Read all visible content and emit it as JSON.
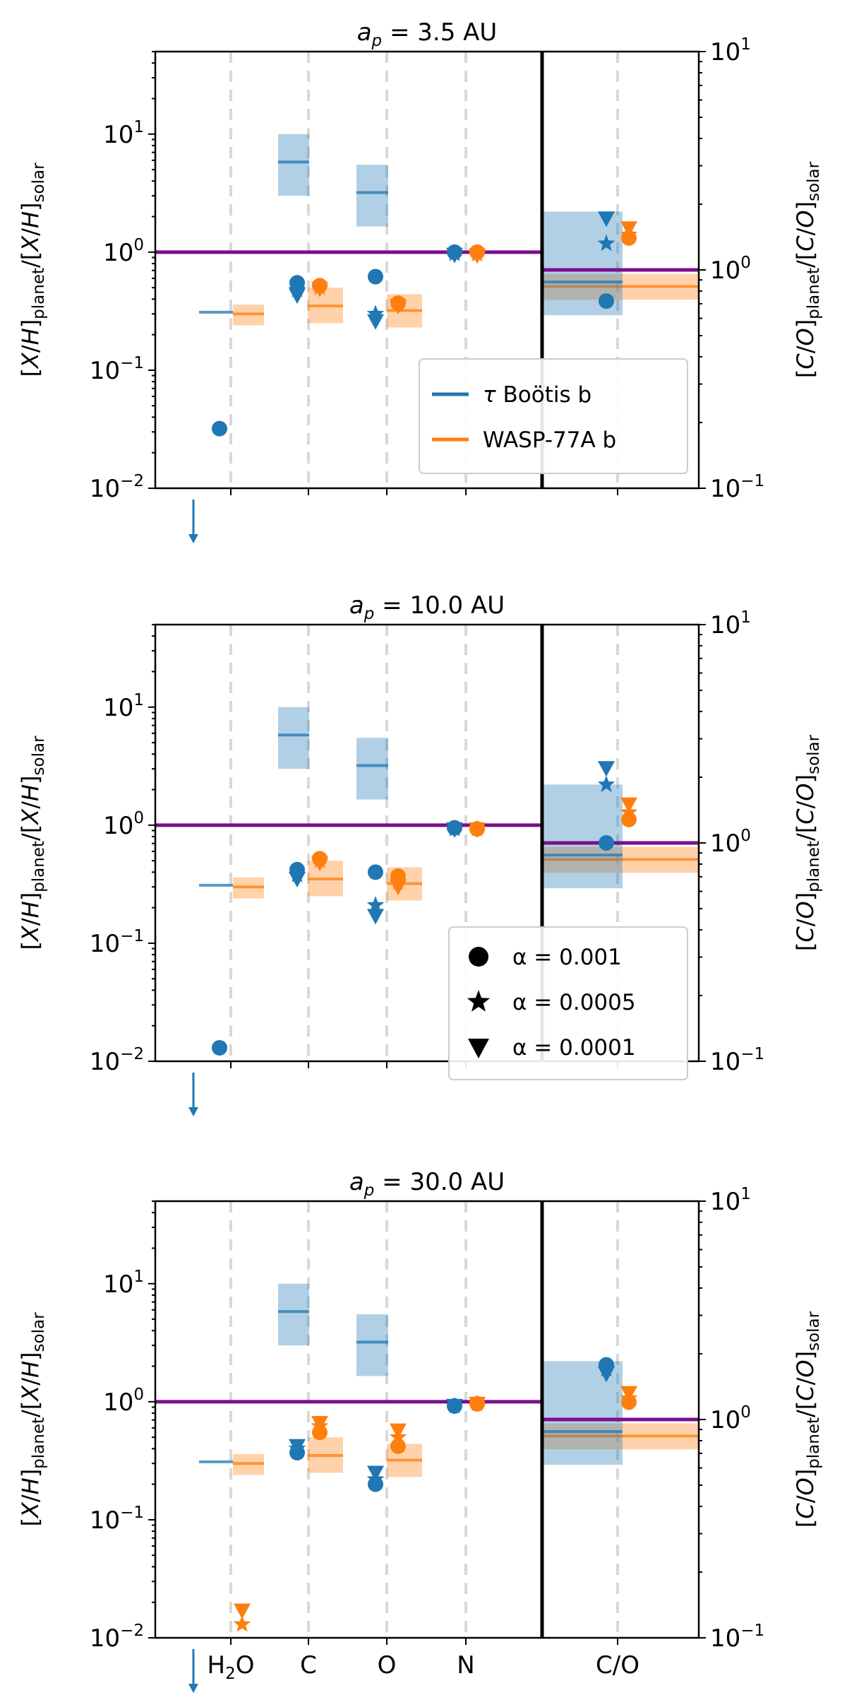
{
  "chart_data": {
    "type": "scatter",
    "y_scale": "log",
    "left_ylim": [
      0.01,
      50
    ],
    "right_ylim": [
      0.1,
      10
    ],
    "left_yticks": [
      0.01,
      0.1,
      1,
      10
    ],
    "right_yticks": [
      0.1,
      1,
      10
    ],
    "left_ytick_labels": [
      {
        "base": "10",
        "exp": "−2"
      },
      {
        "base": "10",
        "exp": "−1"
      },
      {
        "base": "10",
        "exp": "0"
      },
      {
        "base": "10",
        "exp": "1"
      }
    ],
    "right_ytick_labels": [
      {
        "base": "10",
        "exp": "−1"
      },
      {
        "base": "10",
        "exp": "0"
      },
      {
        "base": "10",
        "exp": "1"
      }
    ],
    "categories": [
      "H2O",
      "C",
      "O",
      "N",
      "C/O"
    ],
    "xtick_labels": {
      "h2o_main": "H",
      "h2o_sub": "2",
      "h2o_tail": "O",
      "c": "C",
      "o": "O",
      "n": "N",
      "co": "C/O"
    },
    "ylabel_left": {
      "open": "[",
      "x1": "X",
      "slash1": "/",
      "h1": "H",
      "close1": "]",
      "sub1": "planet",
      "slash_mid": "/[",
      "x2": "X",
      "slash2": "/",
      "h2": "H",
      "close2": "]",
      "sub2": "solar"
    },
    "ylabel_right": {
      "open": "[",
      "x1": "C",
      "slash1": "/",
      "h1": "O",
      "close1": "]",
      "sub1": "planet",
      "slash_mid": "/[",
      "x2": "C",
      "slash2": "/",
      "h2": "O",
      "close2": "]",
      "sub2": "solar"
    },
    "colors": {
      "tau_boo": "#1f77b4",
      "wasp77": "#ff7f0e",
      "solar_line": "#7b0e8c",
      "grid": "#d8d8d8"
    },
    "solar_reference": {
      "abundance": 1.0,
      "co_ratio": 1.0
    },
    "observations": {
      "tau_boo": {
        "H2O": {
          "value": 0.31
        },
        "C": {
          "value": 5.8,
          "low": 3.0,
          "high": 10.0
        },
        "O": {
          "value": 3.2,
          "low": 1.65,
          "high": 5.5
        },
        "CO": {
          "value": 0.88,
          "low": 0.62,
          "high": 1.85
        }
      },
      "wasp77": {
        "H2O": {
          "value": 0.3,
          "low": 0.24,
          "high": 0.36
        },
        "C": {
          "value": 0.35,
          "low": 0.25,
          "high": 0.5
        },
        "O": {
          "value": 0.32,
          "low": 0.23,
          "high": 0.44
        },
        "CO": {
          "value": 0.84,
          "low": 0.73,
          "high": 0.96
        }
      }
    },
    "legend_planets": [
      {
        "key": "tau_boo",
        "tau": "τ",
        "rest": " Boötis b"
      },
      {
        "key": "wasp77",
        "tau": "",
        "rest": "WASP-77A b"
      }
    ],
    "legend_alpha": [
      {
        "marker": "circle",
        "label": "α = 0.001"
      },
      {
        "marker": "star",
        "label": "α = 0.0005"
      },
      {
        "marker": "triangle",
        "label": "α = 0.0001"
      }
    ],
    "panels": [
      {
        "title_var": "a",
        "title_sub": "p",
        "title_rest": " = 3.5 AU",
        "legend": "planets",
        "series": {
          "tau_boo": {
            "circle": {
              "H2O": 0.032,
              "C": 0.55,
              "O": 0.62,
              "N": 1.0,
              "CO": 0.72
            },
            "star": {
              "H2O": null,
              "C": 0.48,
              "O": 0.3,
              "N": 0.97,
              "CO": 1.32
            },
            "triangle": {
              "H2O": null,
              "C": 0.43,
              "O": 0.26,
              "N": 0.95,
              "CO": 1.72
            }
          },
          "wasp77": {
            "circle": {
              "H2O": null,
              "C": 0.52,
              "O": 0.37,
              "N": 1.0,
              "CO": 1.4
            },
            "star": {
              "H2O": null,
              "C": 0.5,
              "O": 0.36,
              "N": 0.96,
              "CO": 1.45
            },
            "triangle": {
              "H2O": null,
              "C": 0.49,
              "O": 0.35,
              "N": 0.94,
              "CO": 1.55
            }
          }
        },
        "off_axis_arrow_text": "↓"
      },
      {
        "title_var": "a",
        "title_sub": "p",
        "title_rest": " = 10.0 AU",
        "legend": "alpha",
        "series": {
          "tau_boo": {
            "circle": {
              "H2O": 0.013,
              "C": 0.42,
              "O": 0.4,
              "N": 0.95,
              "CO": 1.0
            },
            "star": {
              "H2O": null,
              "C": 0.38,
              "O": 0.21,
              "N": 0.93,
              "CO": 1.85
            },
            "triangle": {
              "H2O": null,
              "C": 0.35,
              "O": 0.17,
              "N": 0.92,
              "CO": 2.2
            }
          },
          "wasp77": {
            "circle": {
              "H2O": null,
              "C": 0.52,
              "O": 0.37,
              "N": 0.93,
              "CO": 1.28
            },
            "star": {
              "H2O": null,
              "C": 0.5,
              "O": 0.33,
              "N": 0.93,
              "CO": 1.38
            },
            "triangle": {
              "H2O": null,
              "C": 0.48,
              "O": 0.3,
              "N": 0.92,
              "CO": 1.5
            }
          }
        },
        "off_axis_arrow_text": "↓"
      },
      {
        "title_var": "a",
        "title_sub": "p",
        "title_rest": " = 30.0 AU",
        "legend": "none",
        "series": {
          "tau_boo": {
            "circle": {
              "H2O": null,
              "C": 0.37,
              "O": 0.2,
              "N": 0.92,
              "CO": 1.78
            },
            "star": {
              "H2O": null,
              "C": 0.4,
              "O": 0.22,
              "N": 0.92,
              "CO": 1.7
            },
            "triangle": {
              "H2O": null,
              "C": 0.42,
              "O": 0.25,
              "N": 0.92,
              "CO": 1.62
            }
          },
          "wasp77": {
            "circle": {
              "H2O": null,
              "C": 0.55,
              "O": 0.42,
              "N": 0.96,
              "CO": 1.2
            },
            "star": {
              "H2O": 0.013,
              "C": 0.62,
              "O": 0.5,
              "N": 0.96,
              "CO": 1.25
            },
            "triangle": {
              "H2O": 0.017,
              "C": 0.66,
              "O": 0.57,
              "N": 0.96,
              "CO": 1.32
            }
          }
        },
        "off_axis_arrow_text": "↓"
      }
    ]
  }
}
